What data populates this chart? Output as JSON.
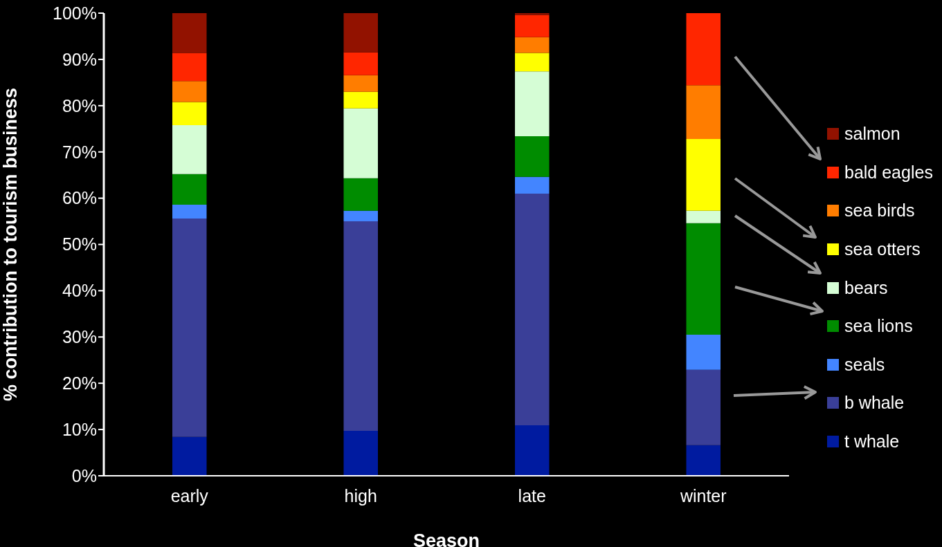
{
  "chart_data": {
    "type": "bar",
    "stacked": true,
    "xlabel": "Season",
    "ylabel": "% contribution to tourism business",
    "categories": [
      "early",
      "high",
      "late",
      "winter"
    ],
    "series": [
      {
        "name": "t whale",
        "color": "#001ba0",
        "values": [
          8.4,
          9.7,
          10.9,
          6.6
        ]
      },
      {
        "name": "b whale",
        "color": "#3a3f98",
        "values": [
          47.2,
          45.3,
          50.1,
          16.3
        ]
      },
      {
        "name": "seals",
        "color": "#4385ff",
        "values": [
          3.0,
          2.3,
          3.6,
          7.6
        ]
      },
      {
        "name": "sea lions",
        "color": "#008c00",
        "values": [
          6.6,
          7.0,
          8.8,
          24.1
        ]
      },
      {
        "name": "bears",
        "color": "#d5fdd5",
        "values": [
          10.6,
          15.1,
          14.0,
          2.7
        ]
      },
      {
        "name": "sea otters",
        "color": "#ffff00",
        "values": [
          5.0,
          3.6,
          4.0,
          15.5
        ]
      },
      {
        "name": "sea birds",
        "color": "#ff7d00",
        "values": [
          4.5,
          3.6,
          3.4,
          11.6
        ]
      },
      {
        "name": "bald eagles",
        "color": "#ff2600",
        "values": [
          6.1,
          4.9,
          4.8,
          15.6
        ]
      },
      {
        "name": "salmon",
        "color": "#921200",
        "values": [
          8.6,
          8.5,
          0.4,
          0
        ]
      }
    ],
    "ylim": [
      0,
      100
    ],
    "yticks": [
      {
        "value": 0,
        "label": "0%"
      },
      {
        "value": 10,
        "label": "10%"
      },
      {
        "value": 20,
        "label": "20%"
      },
      {
        "value": 30,
        "label": "30%"
      },
      {
        "value": 40,
        "label": "40%"
      },
      {
        "value": 50,
        "label": "50%"
      },
      {
        "value": 60,
        "label": "60%"
      },
      {
        "value": 70,
        "label": "70%"
      },
      {
        "value": 80,
        "label": "80%"
      },
      {
        "value": 90,
        "label": "90%"
      },
      {
        "value": 100,
        "label": "100%"
      }
    ],
    "grid": false,
    "legend": "right"
  }
}
